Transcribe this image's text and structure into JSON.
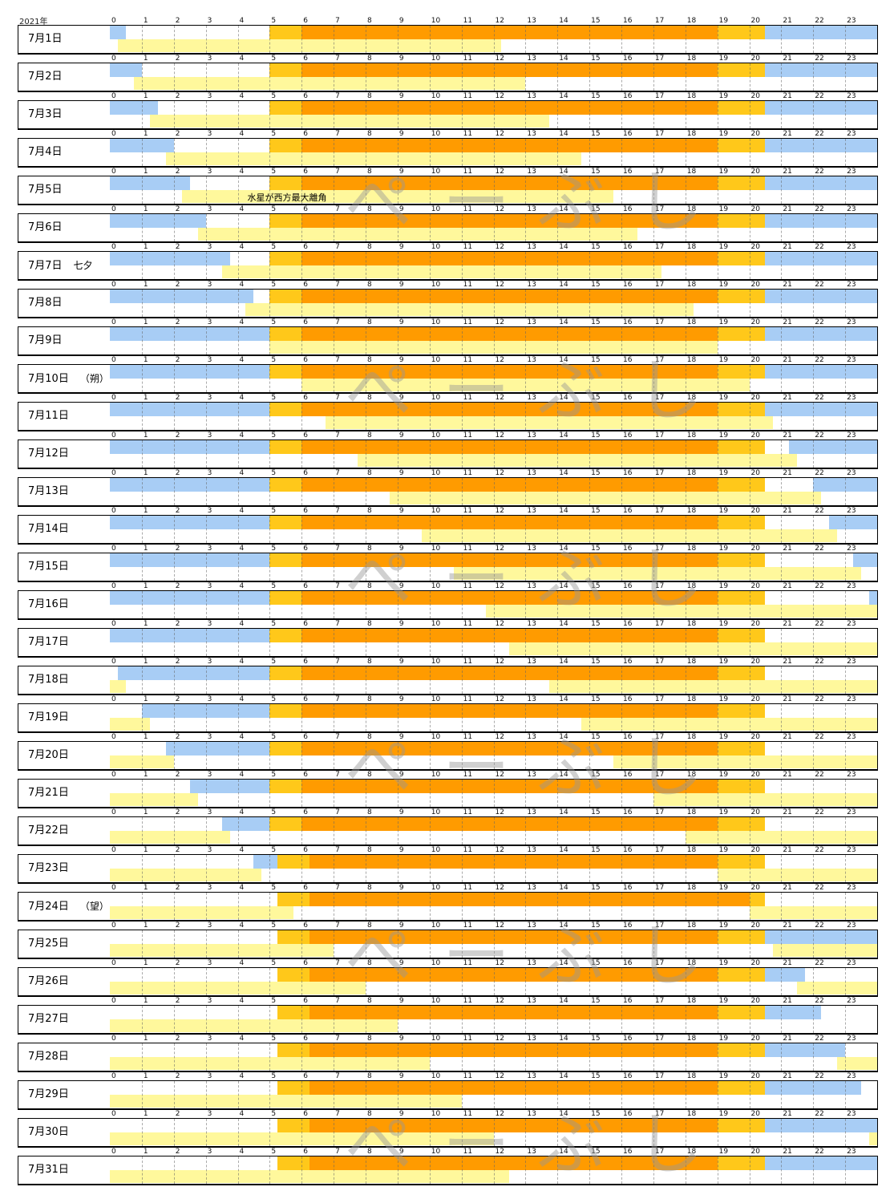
{
  "year_label": "2021年",
  "watermark": "ぺーぶし",
  "colors": {
    "night": "#a8cdf5",
    "twilight": "#ffc81a",
    "day": "#ff9b00",
    "moon": "#fff89c"
  },
  "chart_data": {
    "type": "timeline",
    "x_unit": "hour",
    "xlim": [
      0,
      24
    ],
    "hour_ticks": [
      "0",
      "1",
      "2",
      "3",
      "4",
      "5",
      "6",
      "7",
      "8",
      "9",
      "10",
      "11",
      "12",
      "13",
      "14",
      "15",
      "16",
      "17",
      "18",
      "19",
      "20",
      "21",
      "22",
      "23"
    ],
    "legend": "none",
    "days": [
      {
        "label": "7月1日",
        "note": "",
        "night_am": 0.5,
        "twilight_am": [
          5,
          6
        ],
        "day": [
          6,
          19
        ],
        "twilight_pm": [
          19,
          20.5
        ],
        "night_pm": 20.5,
        "moon": [
          [
            0.25,
            12.25
          ]
        ]
      },
      {
        "label": "7月2日",
        "note": "",
        "night_am": 1,
        "twilight_am": [
          5,
          6
        ],
        "day": [
          6,
          19
        ],
        "twilight_pm": [
          19,
          20.5
        ],
        "night_pm": 20.5,
        "moon": [
          [
            0.75,
            13
          ]
        ]
      },
      {
        "label": "7月3日",
        "note": "",
        "night_am": 1.5,
        "twilight_am": [
          5,
          6
        ],
        "day": [
          6,
          19
        ],
        "twilight_pm": [
          19,
          20.5
        ],
        "night_pm": 20.5,
        "moon": [
          [
            1.25,
            13.75
          ]
        ]
      },
      {
        "label": "7月4日",
        "note": "",
        "night_am": 2,
        "twilight_am": [
          5,
          6
        ],
        "day": [
          6,
          19
        ],
        "twilight_pm": [
          19,
          20.5
        ],
        "night_pm": 20.5,
        "moon": [
          [
            1.75,
            14.75
          ]
        ]
      },
      {
        "label": "7月5日",
        "note": "",
        "event": "水星が西方最大離角",
        "night_am": 2.5,
        "twilight_am": [
          5,
          6
        ],
        "day": [
          6,
          19
        ],
        "twilight_pm": [
          19,
          20.5
        ],
        "night_pm": 20.5,
        "moon": [
          [
            2.25,
            15.75
          ]
        ]
      },
      {
        "label": "7月6日",
        "note": "",
        "night_am": 3,
        "twilight_am": [
          5,
          6
        ],
        "day": [
          6,
          19
        ],
        "twilight_pm": [
          19,
          20.5
        ],
        "night_pm": 20.5,
        "moon": [
          [
            2.75,
            16.5
          ]
        ]
      },
      {
        "label": "7月7日",
        "note": "七夕",
        "night_am": 3.75,
        "twilight_am": [
          5,
          6
        ],
        "day": [
          6,
          19
        ],
        "twilight_pm": [
          19,
          20.5
        ],
        "night_pm": 20.5,
        "moon": [
          [
            3.5,
            17.25
          ]
        ]
      },
      {
        "label": "7月8日",
        "note": "",
        "night_am": 4.5,
        "twilight_am": [
          5,
          6
        ],
        "day": [
          6,
          19
        ],
        "twilight_pm": [
          19,
          20.5
        ],
        "night_pm": 20.5,
        "moon": [
          [
            4.25,
            18.25
          ]
        ]
      },
      {
        "label": "7月9日",
        "note": "",
        "night_am": 5,
        "twilight_am": [
          5,
          6
        ],
        "day": [
          6,
          19
        ],
        "twilight_pm": [
          19,
          20.5
        ],
        "night_pm": 20.5,
        "moon": [
          [
            5,
            19
          ]
        ]
      },
      {
        "label": "7月10日",
        "note": "（朔）",
        "night_am": 5,
        "twilight_am": [
          5,
          6
        ],
        "day": [
          6,
          19
        ],
        "twilight_pm": [
          19,
          20.5
        ],
        "night_pm": 20.5,
        "moon": [
          [
            6,
            20
          ]
        ]
      },
      {
        "label": "7月11日",
        "note": "",
        "night_am": 5,
        "twilight_am": [
          5,
          6
        ],
        "day": [
          6,
          19
        ],
        "twilight_pm": [
          19,
          20.5
        ],
        "night_pm": 20.5,
        "moon": [
          [
            6.75,
            20.75
          ]
        ]
      },
      {
        "label": "7月12日",
        "note": "",
        "night_am": 5,
        "twilight_am": [
          5,
          6
        ],
        "day": [
          6,
          19
        ],
        "twilight_pm": [
          19,
          20.5
        ],
        "night_pm": 21.25,
        "moon": [
          [
            7.75,
            21.5
          ]
        ]
      },
      {
        "label": "7月13日",
        "note": "",
        "night_am": 5,
        "twilight_am": [
          5,
          6
        ],
        "day": [
          6,
          19
        ],
        "twilight_pm": [
          19,
          20.5
        ],
        "night_pm": 22,
        "moon": [
          [
            8.75,
            22.25
          ]
        ]
      },
      {
        "label": "7月14日",
        "note": "",
        "night_am": 5,
        "twilight_am": [
          5,
          6
        ],
        "day": [
          6,
          19
        ],
        "twilight_pm": [
          19,
          20.5
        ],
        "night_pm": 22.5,
        "moon": [
          [
            9.75,
            22.75
          ]
        ]
      },
      {
        "label": "7月15日",
        "note": "",
        "night_am": 5,
        "twilight_am": [
          5,
          6
        ],
        "day": [
          6,
          19
        ],
        "twilight_pm": [
          19,
          20.5
        ],
        "night_pm": 23.25,
        "moon": [
          [
            10.75,
            23.5
          ]
        ]
      },
      {
        "label": "7月16日",
        "note": "",
        "night_am": 5,
        "twilight_am": [
          5,
          6
        ],
        "day": [
          6,
          19
        ],
        "twilight_pm": [
          19,
          20.5
        ],
        "night_pm": 23.75,
        "moon": [
          [
            11.75,
            24
          ]
        ]
      },
      {
        "label": "7月17日",
        "note": "",
        "night_am": 5,
        "twilight_am": [
          5,
          6
        ],
        "day": [
          6,
          19
        ],
        "twilight_pm": [
          19,
          20.5
        ],
        "night_pm": 24,
        "moon": [
          [
            12.5,
            24
          ]
        ]
      },
      {
        "label": "7月18日",
        "note": "",
        "night_am": 5,
        "night_am_start": 0.25,
        "twilight_am": [
          5,
          6
        ],
        "day": [
          6,
          19
        ],
        "twilight_pm": [
          19,
          20.5
        ],
        "night_pm": 24,
        "moon": [
          [
            0,
            0.5
          ],
          [
            13.75,
            24
          ]
        ]
      },
      {
        "label": "7月19日",
        "note": "",
        "night_am": 5,
        "night_am_start": 1,
        "twilight_am": [
          5,
          6
        ],
        "day": [
          6,
          19
        ],
        "twilight_pm": [
          19,
          20.5
        ],
        "night_pm": 24,
        "moon": [
          [
            0,
            1.25
          ],
          [
            14.75,
            24
          ]
        ]
      },
      {
        "label": "7月20日",
        "note": "",
        "night_am": 5,
        "night_am_start": 1.75,
        "twilight_am": [
          5,
          6
        ],
        "day": [
          6,
          19
        ],
        "twilight_pm": [
          19,
          20.5
        ],
        "night_pm": 24,
        "moon": [
          [
            0,
            2
          ],
          [
            15.75,
            24
          ]
        ]
      },
      {
        "label": "7月21日",
        "note": "",
        "night_am": 5,
        "night_am_start": 2.5,
        "twilight_am": [
          5,
          6
        ],
        "day": [
          6,
          19
        ],
        "twilight_pm": [
          19,
          20.5
        ],
        "night_pm": 24,
        "moon": [
          [
            0,
            2.75
          ],
          [
            17,
            24
          ]
        ]
      },
      {
        "label": "7月22日",
        "note": "",
        "night_am": 5,
        "night_am_start": 3.5,
        "twilight_am": [
          5,
          6
        ],
        "day": [
          6,
          19
        ],
        "twilight_pm": [
          19,
          20.5
        ],
        "night_pm": 24,
        "moon": [
          [
            0,
            3.75
          ],
          [
            18,
            24
          ]
        ]
      },
      {
        "label": "7月23日",
        "note": "",
        "night_am": 5.25,
        "night_am_start": 4.5,
        "twilight_am": [
          5.25,
          6.25
        ],
        "day": [
          6.25,
          19
        ],
        "twilight_pm": [
          19,
          20.5
        ],
        "night_pm": 24,
        "moon": [
          [
            0,
            4.75
          ],
          [
            19,
            24
          ]
        ]
      },
      {
        "label": "7月24日",
        "note": "（望）",
        "night_am": 5.25,
        "night_am_start": 5.25,
        "twilight_am": [
          5.25,
          6.25
        ],
        "day": [
          6.25,
          20
        ],
        "twilight_pm": [
          20,
          20.5
        ],
        "night_pm": 24,
        "moon": [
          [
            0,
            5.75
          ],
          [
            20,
            24
          ]
        ]
      },
      {
        "label": "7月25日",
        "note": "",
        "night_am": 5.25,
        "night_am_start": 5.25,
        "twilight_am": [
          5.25,
          6.25
        ],
        "day": [
          6.25,
          19
        ],
        "twilight_pm": [
          19,
          20.5
        ],
        "night_pm": 20.5,
        "moon": [
          [
            0,
            7
          ],
          [
            20.75,
            24
          ]
        ]
      },
      {
        "label": "7月26日",
        "note": "",
        "night_am": 5.25,
        "night_am_start": 5.25,
        "twilight_am": [
          5.25,
          6.25
        ],
        "day": [
          6.25,
          19
        ],
        "twilight_pm": [
          19,
          20.5
        ],
        "night_pm": 20.5,
        "night_pm_end": 21.75,
        "moon": [
          [
            0,
            8
          ],
          [
            21.5,
            24
          ]
        ]
      },
      {
        "label": "7月27日",
        "note": "",
        "night_am": 5.25,
        "night_am_start": 5.25,
        "twilight_am": [
          5.25,
          6.25
        ],
        "day": [
          6.25,
          19
        ],
        "twilight_pm": [
          19,
          20.5
        ],
        "night_pm": 20.5,
        "night_pm_end": 22.25,
        "moon": [
          [
            0,
            9
          ]
        ]
      },
      {
        "label": "7月28日",
        "note": "",
        "night_am": 5.25,
        "night_am_start": 5.25,
        "twilight_am": [
          5.25,
          6.25
        ],
        "day": [
          6.25,
          19
        ],
        "twilight_pm": [
          19,
          20.5
        ],
        "night_pm": 20.5,
        "night_pm_end": 23,
        "moon": [
          [
            0,
            10
          ],
          [
            22.75,
            24
          ]
        ]
      },
      {
        "label": "7月29日",
        "note": "",
        "night_am": 5.25,
        "night_am_start": 5.25,
        "twilight_am": [
          5.25,
          6.25
        ],
        "day": [
          6.25,
          19
        ],
        "twilight_pm": [
          19,
          20.5
        ],
        "night_pm": 20.5,
        "night_pm_end": 23.5,
        "moon": [
          [
            0,
            11
          ]
        ]
      },
      {
        "label": "7月30日",
        "note": "",
        "night_am": 5.25,
        "night_am_start": 5.25,
        "twilight_am": [
          5.25,
          6.25
        ],
        "day": [
          6.25,
          19
        ],
        "twilight_pm": [
          19,
          20.5
        ],
        "night_pm": 20.5,
        "moon": [
          [
            0,
            12
          ],
          [
            23.75,
            24
          ]
        ]
      },
      {
        "label": "7月31日",
        "note": "",
        "night_am": 5.25,
        "night_am_start": 5.25,
        "twilight_am": [
          5.25,
          6.25
        ],
        "day": [
          6.25,
          19
        ],
        "twilight_pm": [
          19,
          20.5
        ],
        "night_pm": 20.5,
        "moon": [
          [
            0,
            12.5
          ]
        ]
      }
    ]
  }
}
